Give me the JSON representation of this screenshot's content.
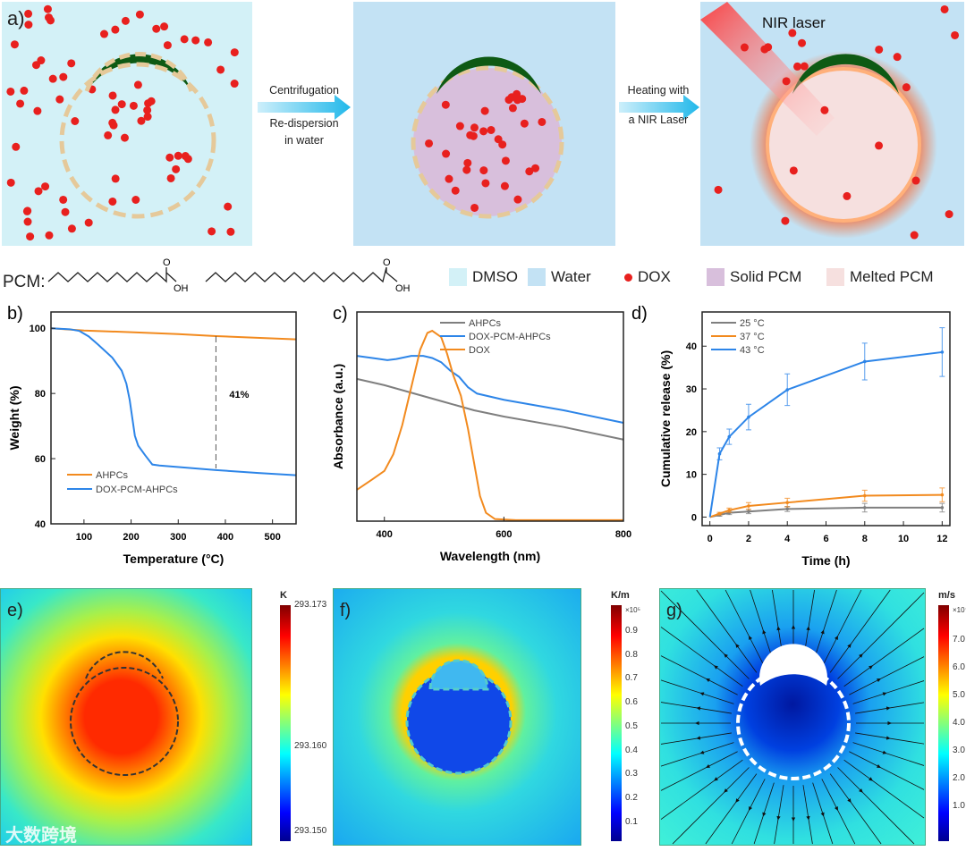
{
  "panel_a": {
    "label": "a)",
    "arrow1": {
      "line1": "Centrifugation",
      "line2": "Re-dispersion",
      "line3": "in water"
    },
    "arrow2": {
      "line1": "Heating with",
      "line2": "a NIR Laser"
    },
    "laser_label": "NIR laser",
    "pcm_label": "PCM:",
    "oh1": "OH",
    "o1": "O",
    "oh2": "OH",
    "o2": "O",
    "legend": [
      {
        "label": "DMSO",
        "color": "#d3f1f7"
      },
      {
        "label": "Water",
        "color": "#c3e2f4"
      },
      {
        "label": "DOX",
        "color": "#e8201e"
      },
      {
        "label": "Solid PCM",
        "color": "#d8bfdc"
      },
      {
        "label": "Melted PCM",
        "color": "#f6e0df"
      }
    ]
  },
  "colors": {
    "orange": "#f28a1e",
    "blue": "#2d85e8",
    "gray": "#7f7f7f",
    "green": "#0e5a14",
    "shell": "#e5c99a"
  },
  "chart_data": [
    {
      "panel": "b)",
      "type": "line",
      "xlabel": "Temperature (°C)",
      "ylabel": "Weight (%)",
      "xlim": [
        30,
        550
      ],
      "ylim": [
        40,
        105
      ],
      "xticks": [
        100,
        200,
        300,
        400,
        500
      ],
      "yticks": [
        40,
        60,
        80,
        100
      ],
      "legend_position": "bottom-left",
      "annotation": {
        "text": "41%",
        "x": 380,
        "y_from": 97.6,
        "y_to": 57
      },
      "series": [
        {
          "name": "AHPCs",
          "color": "#f28a1e",
          "points": [
            [
              30,
              100
            ],
            [
              100,
              99.3
            ],
            [
              200,
              98.8
            ],
            [
              300,
              98.2
            ],
            [
              380,
              97.6
            ],
            [
              450,
              97.2
            ],
            [
              550,
              96.6
            ]
          ]
        },
        {
          "name": "DOX-PCM-AHPCs",
          "color": "#2d85e8",
          "points": [
            [
              30,
              100
            ],
            [
              70,
              99.7
            ],
            [
              90,
              99.2
            ],
            [
              110,
              97.5
            ],
            [
              130,
              95
            ],
            [
              160,
              91
            ],
            [
              180,
              87
            ],
            [
              190,
              83
            ],
            [
              197,
              78
            ],
            [
              203,
              72
            ],
            [
              208,
              67
            ],
            [
              215,
              64
            ],
            [
              230,
              61
            ],
            [
              245,
              58.2
            ],
            [
              260,
              57.9
            ],
            [
              380,
              56.5
            ],
            [
              470,
              55.6
            ],
            [
              550,
              54.9
            ]
          ]
        }
      ]
    },
    {
      "panel": "c)",
      "type": "line",
      "xlabel": "Wavelength (nm)",
      "ylabel": "Absorbance (a.u.)",
      "xlim": [
        354,
        800
      ],
      "ylim": [
        0,
        1
      ],
      "xticks": [
        400,
        600,
        800
      ],
      "yticks": [],
      "legend_position": "top-right",
      "series": [
        {
          "name": "AHPCs",
          "color": "#7f7f7f",
          "points": [
            [
              354,
              0.68
            ],
            [
              400,
              0.65
            ],
            [
              450,
              0.61
            ],
            [
              500,
              0.57
            ],
            [
              550,
              0.53
            ],
            [
              600,
              0.5
            ],
            [
              700,
              0.45
            ],
            [
              800,
              0.39
            ]
          ]
        },
        {
          "name": "DOX-PCM-AHPCs",
          "color": "#2d85e8",
          "points": [
            [
              354,
              0.79
            ],
            [
              380,
              0.78
            ],
            [
              405,
              0.77
            ],
            [
              420,
              0.775
            ],
            [
              445,
              0.79
            ],
            [
              465,
              0.79
            ],
            [
              480,
              0.78
            ],
            [
              495,
              0.76
            ],
            [
              510,
              0.72
            ],
            [
              525,
              0.69
            ],
            [
              540,
              0.64
            ],
            [
              555,
              0.61
            ],
            [
              600,
              0.58
            ],
            [
              700,
              0.53
            ],
            [
              800,
              0.47
            ]
          ]
        },
        {
          "name": "DOX",
          "color": "#f28a1e",
          "points": [
            [
              354,
              0.15
            ],
            [
              380,
              0.2
            ],
            [
              400,
              0.24
            ],
            [
              415,
              0.32
            ],
            [
              430,
              0.46
            ],
            [
              445,
              0.64
            ],
            [
              460,
              0.82
            ],
            [
              472,
              0.9
            ],
            [
              480,
              0.91
            ],
            [
              495,
              0.88
            ],
            [
              505,
              0.8
            ],
            [
              515,
              0.7
            ],
            [
              528,
              0.6
            ],
            [
              540,
              0.44
            ],
            [
              550,
              0.28
            ],
            [
              560,
              0.12
            ],
            [
              570,
              0.04
            ],
            [
              585,
              0.01
            ],
            [
              620,
              0.005
            ],
            [
              800,
              0.005
            ]
          ]
        }
      ]
    },
    {
      "panel": "d)",
      "type": "line",
      "xlabel": "Time (h)",
      "ylabel": "Cumulative release (%)",
      "xlim": [
        -0.4,
        12.4
      ],
      "ylim": [
        -2,
        48
      ],
      "xticks": [
        0,
        2,
        4,
        6,
        8,
        10,
        12
      ],
      "yticks": [
        0,
        10,
        20,
        30,
        40
      ],
      "legend_position": "top-left",
      "series": [
        {
          "name": "25 °C",
          "color": "#7f7f7f",
          "points": [
            [
              0,
              0
            ],
            [
              0.5,
              0.5
            ],
            [
              1,
              1
            ],
            [
              2,
              1.3
            ],
            [
              4,
              1.9
            ],
            [
              8,
              2.2
            ],
            [
              12,
              2.2
            ]
          ],
          "errors": [
            0,
            0.3,
            0.4,
            0.5,
            0.6,
            1,
            1
          ]
        },
        {
          "name": "37 °C",
          "color": "#f28a1e",
          "points": [
            [
              0,
              0
            ],
            [
              0.5,
              0.8
            ],
            [
              1,
              1.6
            ],
            [
              2,
              2.6
            ],
            [
              4,
              3.4
            ],
            [
              8,
              5
            ],
            [
              12,
              5.2
            ]
          ],
          "errors": [
            0,
            0.3,
            0.5,
            0.8,
            1,
            1.3,
            1.6
          ]
        },
        {
          "name": "43 °C",
          "color": "#2d85e8",
          "points": [
            [
              0,
              0
            ],
            [
              0.5,
              14.8
            ],
            [
              1,
              18.8
            ],
            [
              2,
              23.4
            ],
            [
              4,
              29.8
            ],
            [
              8,
              36.4
            ],
            [
              12,
              38.6
            ]
          ],
          "errors": [
            0,
            1.4,
            1.8,
            3,
            3.7,
            4.3,
            5.7
          ]
        }
      ]
    }
  ],
  "sim_panels": [
    {
      "label": "e)",
      "unit": "K",
      "ticks": [
        "293.173",
        "293.160",
        "293.150"
      ]
    },
    {
      "label": "f)",
      "unit": "K/m",
      "exponent": "×10⁵",
      "ticks": [
        "0.9",
        "0.8",
        "0.7",
        "0.6",
        "0.5",
        "0.4",
        "0.3",
        "0.2",
        "0.1"
      ]
    },
    {
      "label": "g)",
      "unit": "m/s",
      "exponent": "×10⁻⁷",
      "ticks": [
        "7.0",
        "6.0",
        "5.0",
        "4.0",
        "3.0",
        "2.0",
        "1.0"
      ]
    }
  ],
  "watermark": "大数跨境"
}
